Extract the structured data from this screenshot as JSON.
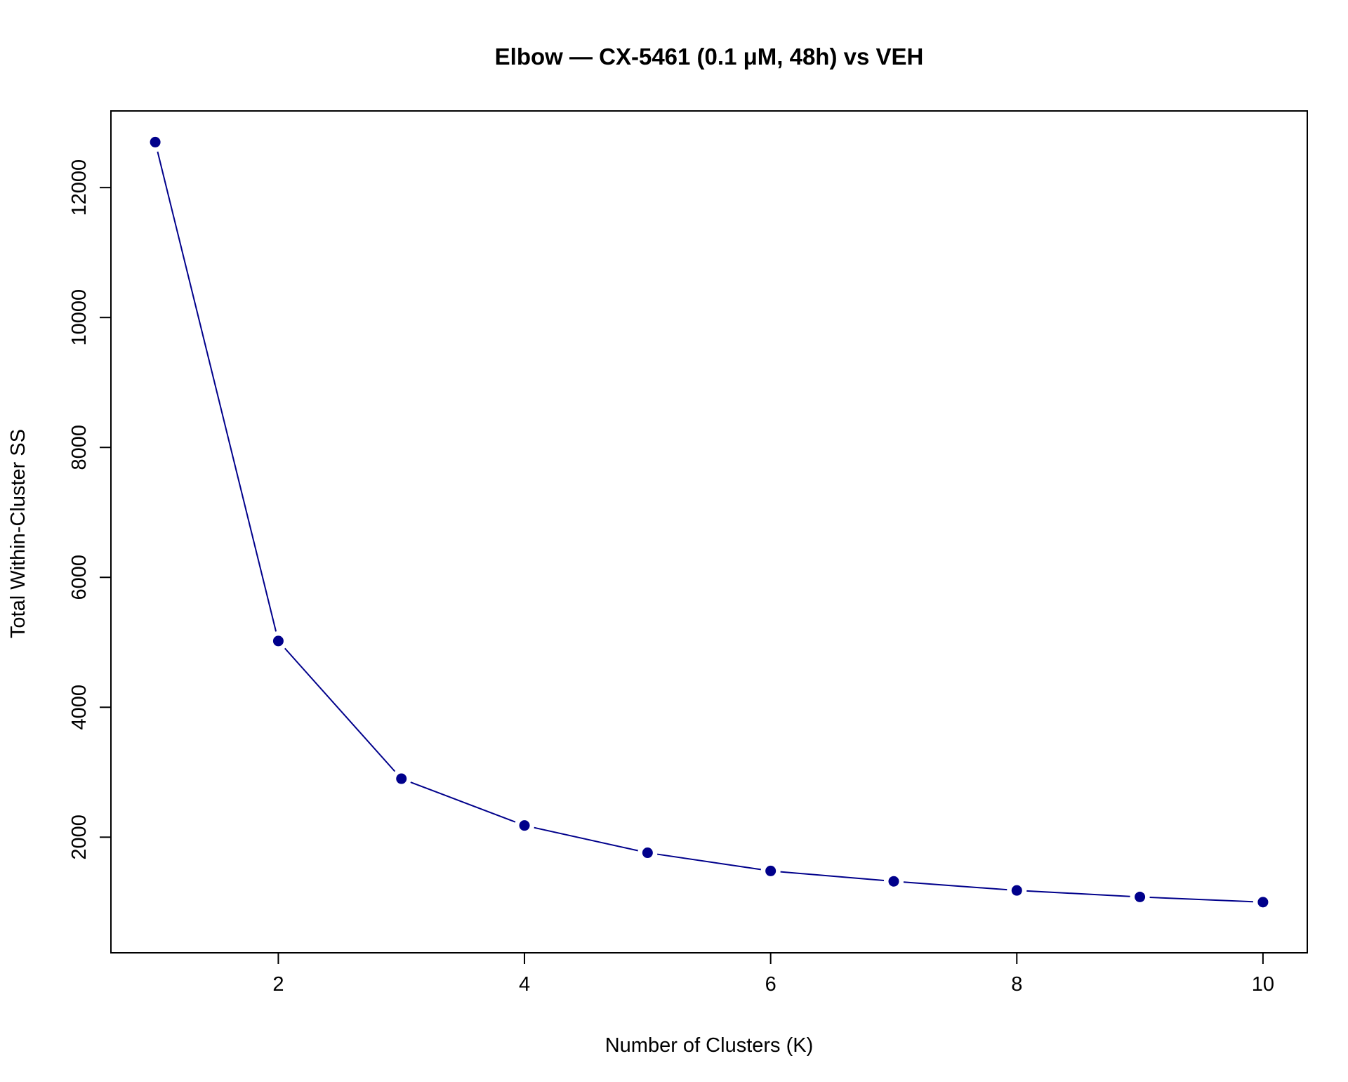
{
  "chart_data": {
    "type": "line",
    "title": "Elbow — CX-5461 (0.1 μM, 48h) vs VEH",
    "xlabel": "Number of Clusters (K)",
    "ylabel": "Total Within-Cluster SS",
    "x": [
      1,
      2,
      3,
      4,
      5,
      6,
      7,
      8,
      9,
      10
    ],
    "series": [
      {
        "values": [
          12700,
          5020,
          2900,
          2180,
          1760,
          1480,
          1320,
          1180,
          1080,
          1000
        ]
      }
    ],
    "xlim": [
      0.64,
      10.36
    ],
    "ylim": [
      220,
      13180
    ],
    "x_ticks": [
      2,
      4,
      6,
      8,
      10
    ],
    "y_ticks": [
      2000,
      4000,
      6000,
      8000,
      10000,
      12000
    ],
    "grid": false,
    "legend": "none",
    "markers": "filled circles",
    "series_color": "#00008B"
  }
}
